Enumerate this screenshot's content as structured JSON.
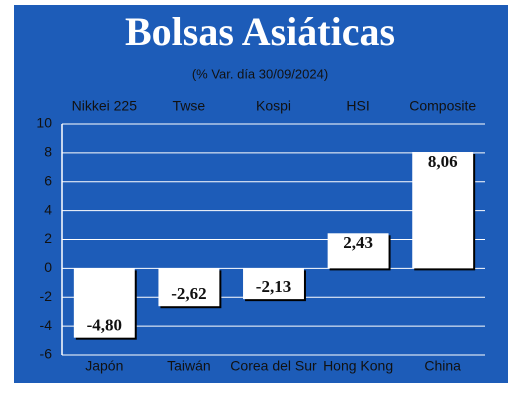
{
  "chart_data": {
    "type": "bar",
    "title": "Bolsas Asiáticas",
    "subtitle": "(% Var. día 30/09/2024)",
    "indices": [
      "Nikkei 225",
      "Twse",
      "Kospi",
      "HSI",
      "Composite"
    ],
    "categories": [
      "Japón",
      "Taiwán",
      "Corea del Sur",
      "Hong Kong",
      "China"
    ],
    "values": [
      -4.8,
      -2.62,
      -2.13,
      2.43,
      8.06
    ],
    "value_labels": [
      "-4,80",
      "-2,62",
      "-2,13",
      "2,43",
      "8,06"
    ],
    "color": "#ffffff",
    "background": "#1d5cb8",
    "ylim": [
      -6,
      10
    ],
    "yticks": [
      -6,
      -4,
      -2,
      0,
      2,
      4,
      6,
      8,
      10
    ],
    "grid": true
  }
}
